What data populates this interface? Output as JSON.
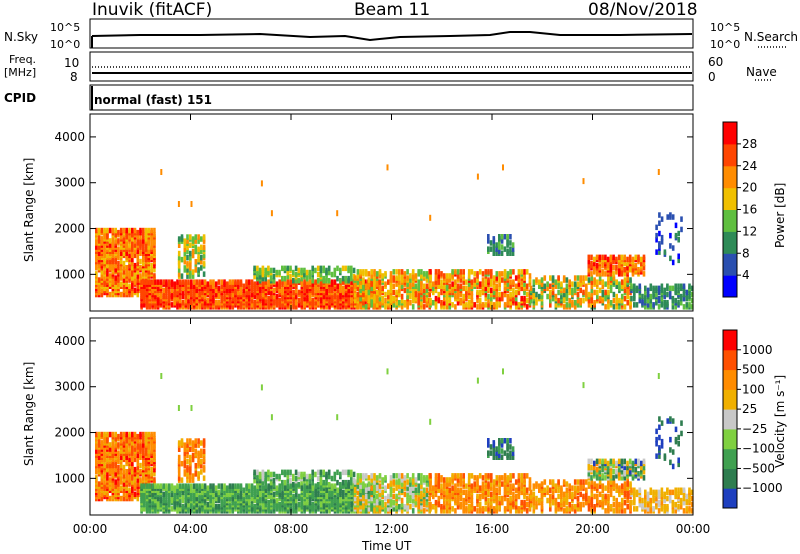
{
  "header": {
    "station": "Inuvik (fitACF)",
    "beam": "Beam 11",
    "date": "08/Nov/2018"
  },
  "top_panel": {
    "left_label": "N.Sky",
    "right_label": "N.Search",
    "left_ticks": [
      "10^5",
      "10^0"
    ],
    "right_ticks": [
      "10^5",
      "10^0"
    ]
  },
  "freq_panel": {
    "label_line1": "Freq.",
    "label_line2": "[MHz]",
    "left_ticks": [
      "10",
      "8"
    ],
    "right_ticks": [
      "60",
      "0"
    ],
    "right_label": "Nave"
  },
  "cpid": {
    "label": "CPID",
    "mode": "normal (fast) 151"
  },
  "colors": {
    "power_scale": [
      "#0000ff",
      "#2a4fb0",
      "#2e8b57",
      "#5fbf3f",
      "#f0c000",
      "#ff8c00",
      "#ff4500",
      "#ff0000"
    ],
    "velocity_scale": [
      "#1e3fbf",
      "#2e7d4f",
      "#3fa050",
      "#7fd040",
      "#c8c8c8",
      "#f0b000",
      "#ff8c00",
      "#ff5000",
      "#ff0000"
    ]
  },
  "chart_data": [
    {
      "type": "heatmap",
      "panel": "power",
      "ylabel": "Slant Range [km]",
      "yticks": [
        "1000",
        "2000",
        "3000",
        "4000"
      ],
      "ylim": [
        200,
        4500
      ],
      "xticks": [
        "00:00",
        "04:00",
        "08:00",
        "12:00",
        "16:00",
        "20:00",
        "00:00"
      ],
      "xlim": [
        0,
        24
      ],
      "colorbar_label": "Power [dB]",
      "colorbar_ticks": [
        "28",
        "24",
        "20",
        "16",
        "12",
        "8",
        "4"
      ],
      "colorbar_range": [
        0,
        30
      ]
    },
    {
      "type": "heatmap",
      "panel": "velocity",
      "ylabel": "Slant Range [km]",
      "yticks": [
        "1000",
        "2000",
        "3000",
        "4000"
      ],
      "ylim": [
        200,
        4500
      ],
      "xticks": [
        "00:00",
        "04:00",
        "08:00",
        "12:00",
        "16:00",
        "20:00",
        "00:00"
      ],
      "xlabel": "Time UT",
      "xlim": [
        0,
        24
      ],
      "colorbar_label": "Velocity [m s⁻¹]",
      "colorbar_ticks": [
        "1000",
        "500",
        "100",
        "25",
        "−25",
        "−100",
        "−500",
        "−1000"
      ],
      "colorbar_range": [
        -1000,
        1000
      ]
    }
  ]
}
